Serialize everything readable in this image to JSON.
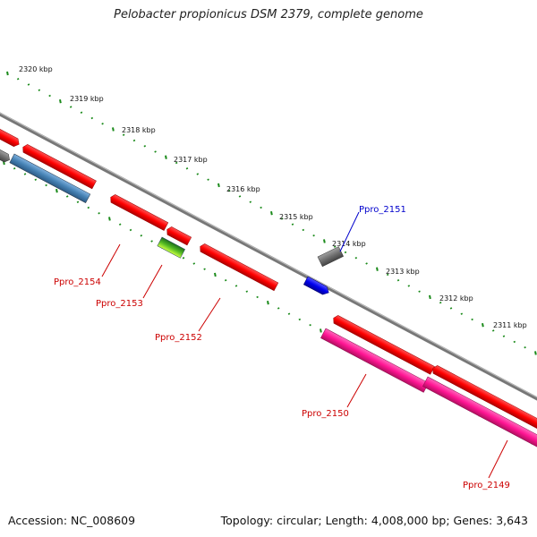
{
  "title": "Pelobacter propionicus DSM 2379, complete genome",
  "footer": {
    "accession": "Accession: NC_008609",
    "summary": "Topology: circular; Length: 4,008,000 bp; Genes: 3,643"
  },
  "ruler": [
    "2320 kbp",
    "2319 kbp",
    "2318 kbp",
    "2317 kbp",
    "2316 kbp",
    "2315 kbp",
    "2314 kbp",
    "2313 kbp",
    "2312 kbp",
    "2311 kbp"
  ],
  "genes": [
    {
      "label": "Ppro_2154",
      "color": "#cc0000"
    },
    {
      "label": "Ppro_2153",
      "color": "#cc0000"
    },
    {
      "label": "Ppro_2152",
      "color": "#cc0000"
    },
    {
      "label": "Ppro_2151",
      "color": "#0000cc"
    },
    {
      "label": "Ppro_2150",
      "color": "#cc0000"
    },
    {
      "label": "Ppro_2149",
      "color": "#cc0000"
    }
  ],
  "colors": {
    "red": "#ff1a1a",
    "gray": "#777777",
    "steelblue": "#4a86c0",
    "blue": "#1111ee",
    "green": "#2a8a2a",
    "lime": "#99ee22",
    "pink": "#ff2299",
    "tickgreen": "#1a8a1a"
  }
}
